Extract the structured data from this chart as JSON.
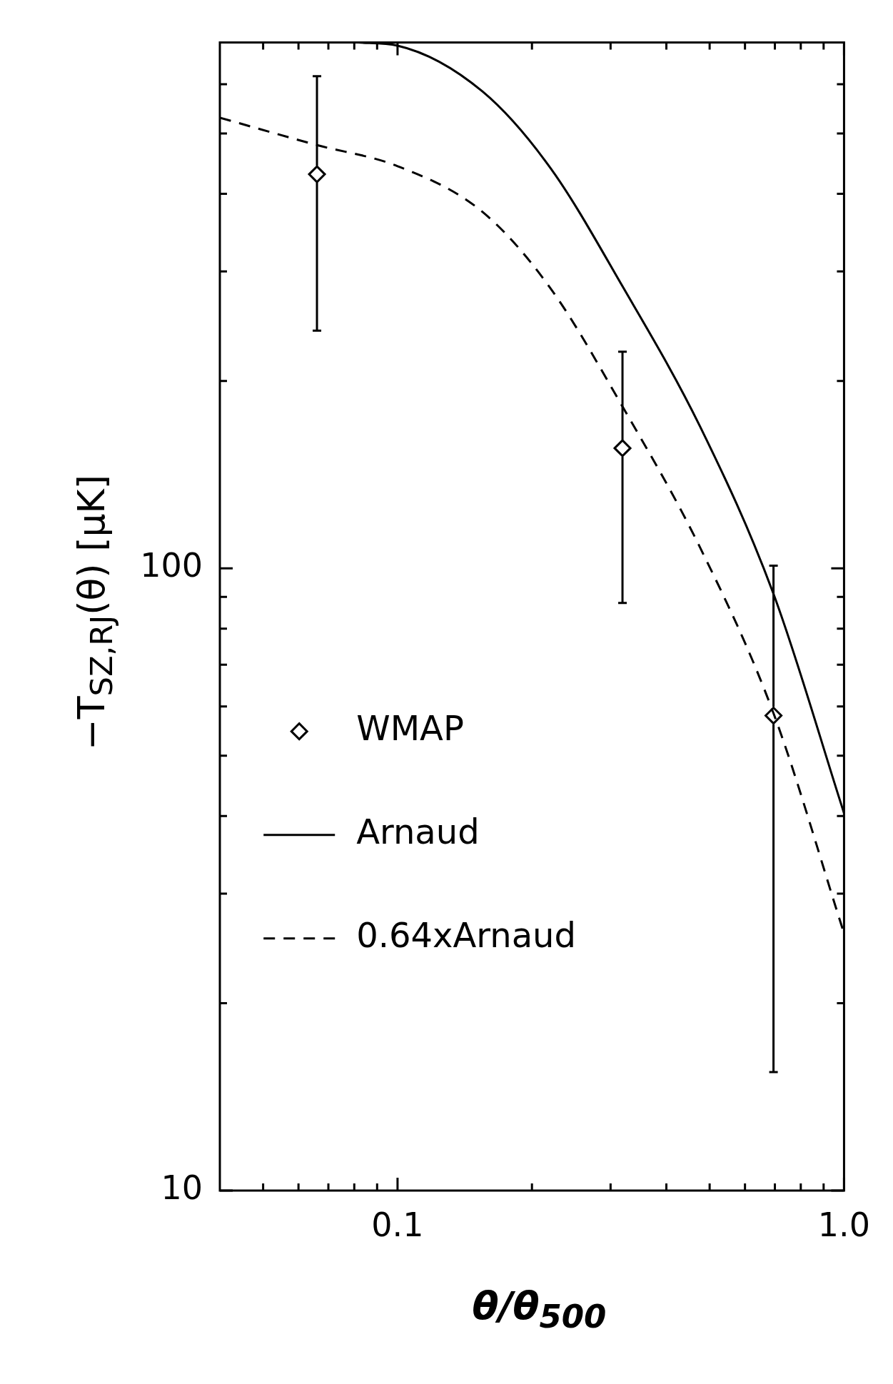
{
  "chart_data": {
    "type": "line",
    "xlabel": "θ/θ$_{500}$",
    "ylabel": "−T$_{SZ,RJ}$(θ) [μK]",
    "log": "xy",
    "legend": "left",
    "xlim": [
      0.04,
      1.0
    ],
    "ylim": [
      10,
      700
    ],
    "xticks": [
      {
        "value": 0.05,
        "label": null
      },
      {
        "value": 0.06,
        "label": null
      },
      {
        "value": 0.07,
        "label": null
      },
      {
        "value": 0.08,
        "label": null
      },
      {
        "value": 0.09,
        "label": null
      },
      0.1,
      {
        "value": 0.2,
        "label": null
      },
      {
        "value": 0.3,
        "label": null
      },
      {
        "value": 0.4,
        "label": null
      },
      {
        "value": 0.5,
        "label": null
      },
      {
        "value": 0.6,
        "label": null
      },
      {
        "value": 0.7,
        "label": null
      },
      {
        "value": 0.8,
        "label": null
      },
      {
        "value": 0.9,
        "label": null
      },
      {
        "value": 1.0,
        "label": "1.0"
      }
    ],
    "yticks": [
      10,
      {
        "value": 20,
        "label": null
      },
      {
        "value": 30,
        "label": null
      },
      {
        "value": 40,
        "label": null
      },
      {
        "value": 50,
        "label": null
      },
      {
        "value": 60,
        "label": null
      },
      {
        "value": 70,
        "label": null
      },
      {
        "value": 80,
        "label": null
      },
      {
        "value": 90,
        "label": null
      },
      100,
      {
        "value": 200,
        "label": null
      },
      {
        "value": 300,
        "label": null
      },
      {
        "value": 400,
        "label": null
      },
      {
        "value": 500,
        "label": null
      },
      {
        "value": 600,
        "label": null
      },
      {
        "value": 700,
        "label": null
      }
    ],
    "series": [
      {
        "name": "WMAP",
        "type": "scatter",
        "marker": "diamond",
        "color": "#000000",
        "x": [
          0.066,
          0.319,
          0.695
        ],
        "values": [
          430,
          156,
          58
        ],
        "errors": [
          [
            241,
            618
          ],
          [
            88,
            223
          ],
          [
            15.5,
            101
          ]
        ]
      },
      {
        "name": "Arnaud",
        "type": "line",
        "line_style": "solid",
        "color": "#000000",
        "x": [
          0.0817,
          0.1,
          0.155,
          0.22,
          0.319,
          0.476,
          0.695,
          1.0
        ],
        "values": [
          700,
          692,
          584,
          440,
          284,
          169,
          91,
          40.4
        ]
      },
      {
        "name": "0.64xArnaud",
        "type": "line",
        "line_style": "dashed",
        "color": "#000000",
        "x": [
          0.04,
          0.066,
          0.1,
          0.155,
          0.22,
          0.319,
          0.476,
          0.695,
          1.0
        ],
        "values": [
          530,
          479,
          443,
          374,
          282,
          182,
          108,
          58.5,
          25.9
        ]
      }
    ]
  }
}
